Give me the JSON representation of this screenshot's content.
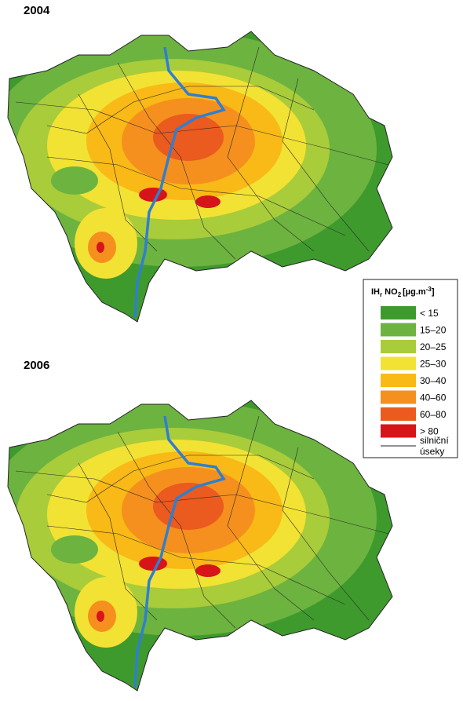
{
  "maps": [
    {
      "year": "2004"
    },
    {
      "year": "2006"
    }
  ],
  "legend": {
    "title_parts": [
      "IH",
      "r",
      " NO",
      "2",
      "[µg.m",
      "-3",
      "]"
    ],
    "items": [
      {
        "label": "< 15",
        "color": "#3f9a2e"
      },
      {
        "label": "15–20",
        "color": "#6db33f"
      },
      {
        "label": "20–25",
        "color": "#a9cc3a"
      },
      {
        "label": "25–30",
        "color": "#f2e234"
      },
      {
        "label": "30–40",
        "color": "#f9b916"
      },
      {
        "label": "40–60",
        "color": "#f5901e"
      },
      {
        "label": "60–80",
        "color": "#eb5a1e"
      },
      {
        "label": "> 80",
        "color": "#d7141a"
      }
    ],
    "road_label": [
      "silniční",
      "úseky"
    ]
  }
}
